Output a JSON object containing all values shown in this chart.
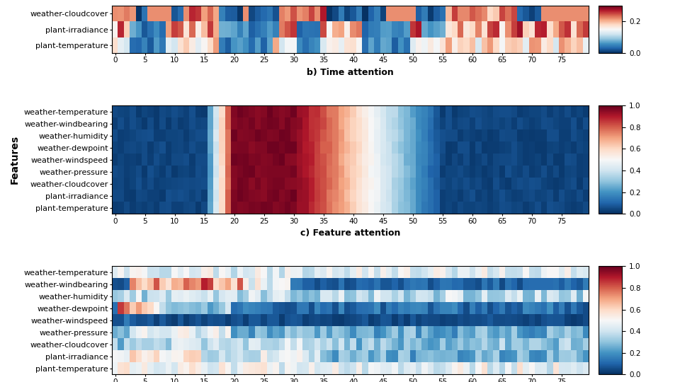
{
  "features_9": [
    "weather-temperature",
    "weather-windbearing",
    "weather-humidity",
    "weather-dewpoint",
    "weather-windspeed",
    "weather-pressure",
    "weather-cloudcover",
    "plant-irradiance",
    "plant-temperature"
  ],
  "features_top3": [
    "weather-cloudcover",
    "plant-irradiance",
    "plant-temperature"
  ],
  "n_timesteps": 80,
  "title_b": "b) Time attention",
  "title_c": "c) Feature attention",
  "ylabel": "Features",
  "xticks": [
    0,
    5,
    10,
    15,
    20,
    25,
    30,
    35,
    40,
    45,
    50,
    55,
    60,
    65,
    70,
    75
  ]
}
